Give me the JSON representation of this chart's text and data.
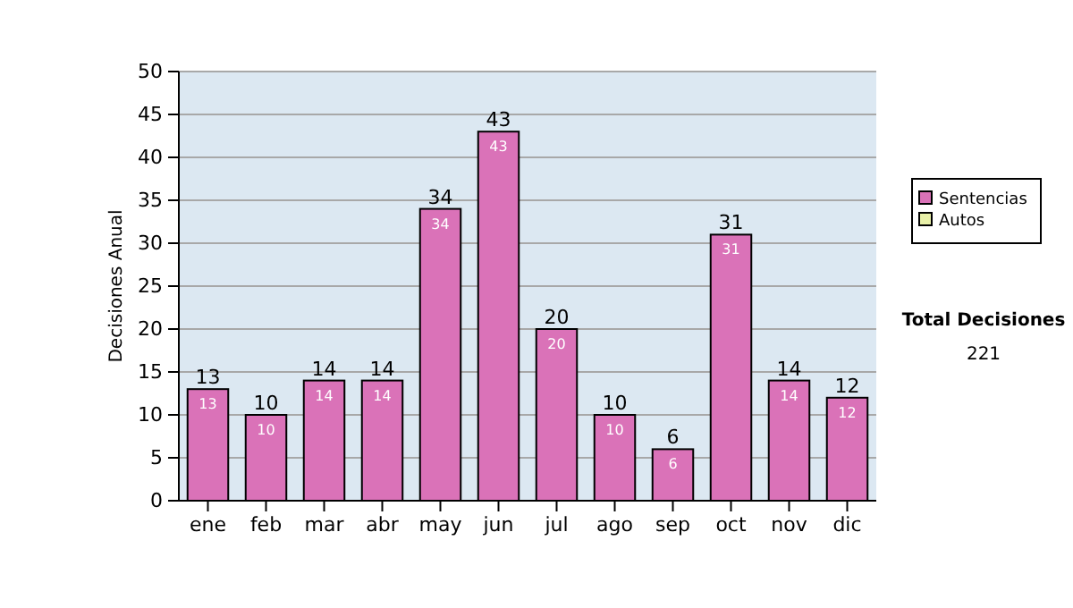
{
  "chart_data": {
    "type": "bar",
    "ylabel": "Decisiones Anual",
    "categories": [
      "ene",
      "feb",
      "mar",
      "abr",
      "may",
      "jun",
      "jul",
      "ago",
      "sep",
      "oct",
      "nov",
      "dic"
    ],
    "series": [
      {
        "name": "Sentencias",
        "color": "#da72b8",
        "values": [
          13,
          10,
          14,
          14,
          34,
          43,
          20,
          10,
          6,
          31,
          14,
          12
        ],
        "value_labels": [
          "13",
          "10",
          "14",
          "14",
          "34",
          "43",
          "20",
          "10",
          "6",
          "31",
          "14",
          "12"
        ]
      },
      {
        "name": "Autos",
        "color": "#e8f0a8",
        "values": [
          null,
          null,
          null,
          null,
          null,
          null,
          null,
          null,
          null,
          null,
          null,
          null
        ]
      }
    ],
    "ylim": [
      0,
      50
    ],
    "yticks": [
      0,
      5,
      10,
      15,
      20,
      25,
      30,
      35,
      40,
      45,
      50
    ],
    "grid": "y",
    "legend": "right",
    "annotations": [
      "Total Decisiones",
      "221",
      {
        "text": "13",
        "x": "ene",
        "y": 13
      },
      {
        "text": "10",
        "x": "feb",
        "y": 10
      },
      {
        "text": "14",
        "x": "mar",
        "y": 14
      },
      {
        "text": "14",
        "x": "abr",
        "y": 14
      },
      {
        "text": "34",
        "x": "may",
        "y": 34
      },
      {
        "text": "43",
        "x": "jun",
        "y": 43
      },
      {
        "text": "20",
        "x": "jul",
        "y": 20
      },
      {
        "text": "10",
        "x": "ago",
        "y": 10
      },
      {
        "text": "6",
        "x": "sep",
        "y": 6
      },
      {
        "text": "31",
        "x": "oct",
        "y": 31
      },
      {
        "text": "14",
        "x": "nov",
        "y": 14
      },
      {
        "text": "12",
        "x": "dic",
        "y": 12
      }
    ]
  }
}
